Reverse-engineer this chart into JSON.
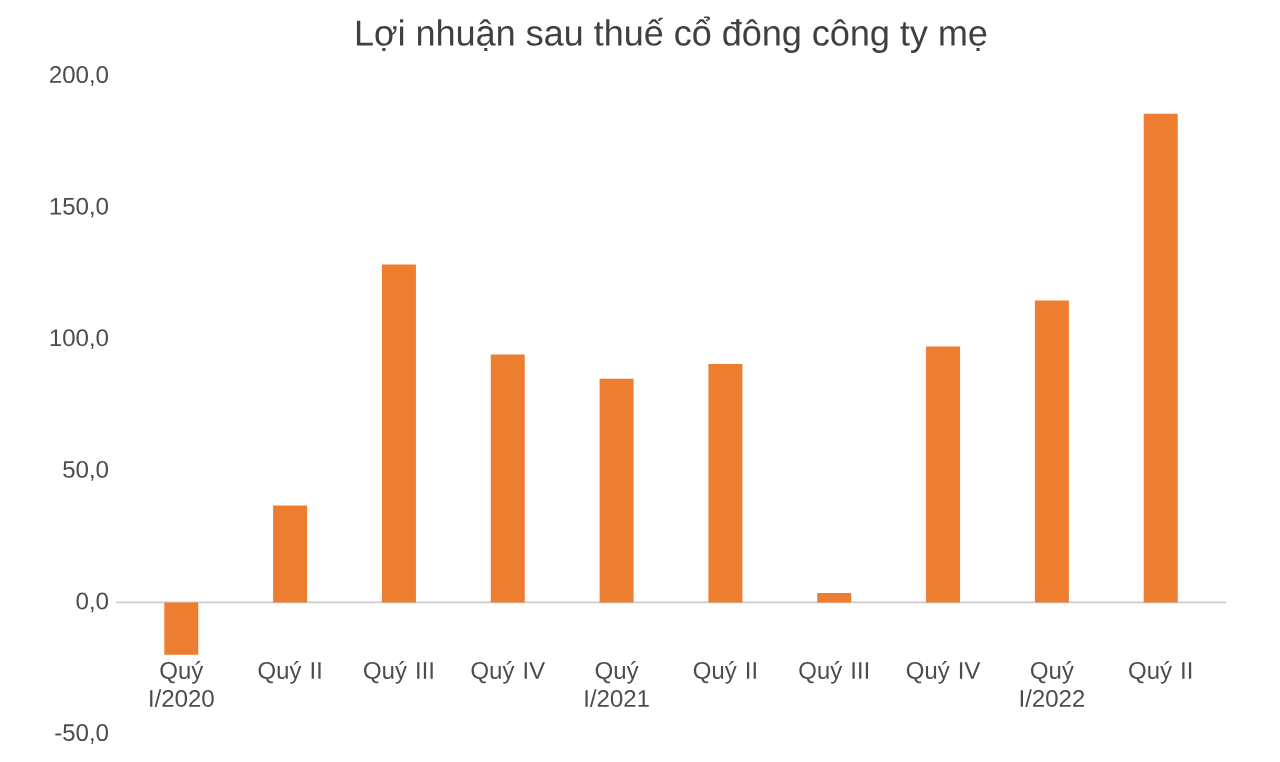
{
  "chart_data": {
    "type": "bar",
    "title": "Lợi nhuận sau thuế cổ đông công ty mẹ",
    "categories": [
      "Quý I/2020",
      "Quý II",
      "Quý III",
      "Quý IV",
      "Quý I/2021",
      "Quý II",
      "Quý III",
      "Quý IV",
      "Quý I/2022",
      "Quý II"
    ],
    "values": [
      -19.9,
      36.8,
      128.4,
      94.2,
      85,
      90.6,
      3.6,
      97.2,
      114.7,
      185.7
    ],
    "color": "#ed7d31",
    "ylim": [
      -50,
      200
    ],
    "yticks": [
      {
        "value": -50,
        "label": "-50,0"
      },
      {
        "value": 0,
        "label": "0,0"
      },
      {
        "value": 50,
        "label": "50,0"
      },
      {
        "value": 100,
        "label": "100,0"
      },
      {
        "value": 150,
        "label": "150,0"
      },
      {
        "value": 200,
        "label": "200,0"
      }
    ]
  }
}
